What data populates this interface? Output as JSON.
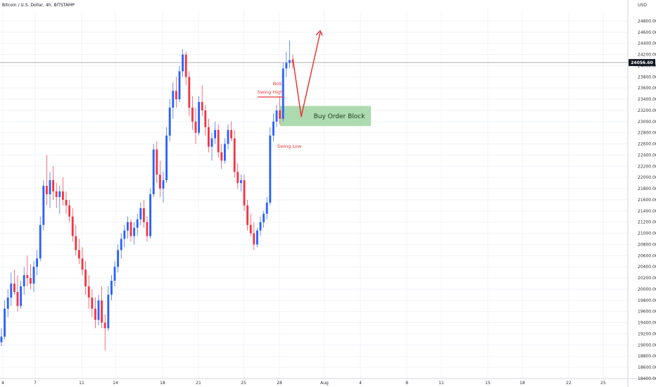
{
  "chart_data": {
    "type": "candlestick",
    "title": "Bitcoin / U.S. Dollar, 4h, BITSTAMP",
    "currency_label": "USD",
    "last_price": "24056.60",
    "last_price_value": 24056.6,
    "ylim": [
      18400,
      25000
    ],
    "y_ticks": [
      24800,
      24600,
      24400,
      24200,
      24000,
      23800,
      23600,
      23400,
      23200,
      23000,
      22800,
      22600,
      22400,
      22200,
      22000,
      21800,
      21600,
      21400,
      21200,
      21000,
      20800,
      20600,
      20400,
      20200,
      20000,
      19800,
      19600,
      19400,
      19200,
      19000,
      18800,
      18600,
      18400
    ],
    "y_tick_labels": [
      "24800.00",
      "24600.00",
      "24400.00",
      "24200.00",
      "24000.00",
      "23800.00",
      "23600.00",
      "23400.00",
      "23200.00",
      "23000.00",
      "22800.00",
      "22600.00",
      "22400.00",
      "22200.00",
      "22000.00",
      "21800.00",
      "21600.00",
      "21400.00",
      "21200.00",
      "21000.00",
      "20800.00",
      "20600.00",
      "20400.00",
      "20200.00",
      "20000.00",
      "19800.00",
      "19600.00",
      "19400.00",
      "19200.00",
      "19000.00",
      "18800.00",
      "18600.00",
      "18400.00"
    ],
    "x_tick_labels": [
      "4",
      "7",
      "11",
      "14",
      "18",
      "21",
      "25",
      "28",
      "Aug",
      "4",
      "8",
      "11",
      "15",
      "18",
      "22",
      "25"
    ],
    "colors": {
      "up": "#2962ff",
      "down": "#f23645",
      "annotation": "#e53935",
      "order_block_fill": "#a5d6a7",
      "grid": "#f0f3fa",
      "price_line": "#9598a1",
      "price_tag": "#131722"
    },
    "candles": [
      [
        19050,
        19300,
        18980,
        19150
      ],
      [
        19150,
        19800,
        19100,
        19650
      ],
      [
        19650,
        20000,
        19500,
        19850
      ],
      [
        19850,
        20300,
        19700,
        20100
      ],
      [
        20100,
        20350,
        19900,
        19950
      ],
      [
        19950,
        20250,
        19600,
        19700
      ],
      [
        19700,
        20150,
        19650,
        20050
      ],
      [
        20050,
        20400,
        19900,
        20250
      ],
      [
        20250,
        20600,
        20050,
        20200
      ],
      [
        20200,
        20450,
        20000,
        20100
      ],
      [
        20100,
        20500,
        19950,
        20400
      ],
      [
        20400,
        20700,
        20250,
        20550
      ],
      [
        20550,
        21300,
        20500,
        21150
      ],
      [
        21150,
        21950,
        21050,
        21850
      ],
      [
        21850,
        22400,
        21500,
        21700
      ],
      [
        21700,
        22100,
        21450,
        21950
      ],
      [
        21950,
        22200,
        21600,
        21750
      ],
      [
        21750,
        21900,
        21450,
        21650
      ],
      [
        21650,
        21850,
        21350,
        21750
      ],
      [
        21750,
        22000,
        21500,
        21600
      ],
      [
        21600,
        21750,
        21350,
        21500
      ],
      [
        21500,
        21600,
        21200,
        21300
      ],
      [
        21300,
        21450,
        20850,
        20950
      ],
      [
        20950,
        21150,
        20600,
        20700
      ],
      [
        20700,
        20900,
        20450,
        20550
      ],
      [
        20550,
        20750,
        20250,
        20350
      ],
      [
        20350,
        20500,
        19900,
        20050
      ],
      [
        20050,
        20250,
        19650,
        19850
      ],
      [
        19850,
        20000,
        19500,
        19650
      ],
      [
        19650,
        19850,
        19300,
        19450
      ],
      [
        19450,
        19900,
        19350,
        19800
      ],
      [
        19800,
        20050,
        19300,
        19400
      ],
      [
        19400,
        19550,
        18900,
        19300
      ],
      [
        19300,
        20050,
        19250,
        19900
      ],
      [
        19900,
        20250,
        19800,
        20150
      ],
      [
        20150,
        20500,
        20050,
        20400
      ],
      [
        20400,
        20800,
        20300,
        20700
      ],
      [
        20700,
        21000,
        20550,
        20900
      ],
      [
        20900,
        21150,
        20750,
        21050
      ],
      [
        21050,
        21300,
        20900,
        21200
      ],
      [
        21200,
        21250,
        20850,
        20950
      ],
      [
        20950,
        21200,
        20800,
        21100
      ],
      [
        21100,
        21350,
        20950,
        21250
      ],
      [
        21250,
        21550,
        21150,
        21450
      ],
      [
        21450,
        21600,
        21100,
        21200
      ],
      [
        21200,
        21300,
        20850,
        20950
      ],
      [
        20950,
        21800,
        20900,
        21700
      ],
      [
        21700,
        22600,
        21650,
        22500
      ],
      [
        22500,
        22650,
        21900,
        22050
      ],
      [
        22050,
        22300,
        21650,
        21800
      ],
      [
        21800,
        22100,
        21550,
        21950
      ],
      [
        21950,
        22900,
        21900,
        22750
      ],
      [
        22750,
        23400,
        22650,
        23250
      ],
      [
        23250,
        23700,
        23050,
        23550
      ],
      [
        23550,
        23800,
        23250,
        23400
      ],
      [
        23400,
        24000,
        23350,
        23900
      ],
      [
        23900,
        24300,
        23800,
        24200
      ],
      [
        24200,
        24250,
        23650,
        23800
      ],
      [
        23800,
        23900,
        23100,
        23250
      ],
      [
        23250,
        23450,
        22850,
        23000
      ],
      [
        23000,
        23250,
        22600,
        22800
      ],
      [
        22800,
        23450,
        22750,
        23350
      ],
      [
        23350,
        23650,
        23100,
        23200
      ],
      [
        23200,
        23300,
        22750,
        22900
      ],
      [
        22900,
        23050,
        22450,
        22550
      ],
      [
        22550,
        22800,
        22300,
        22700
      ],
      [
        22700,
        23000,
        22600,
        22850
      ],
      [
        22850,
        22950,
        22350,
        22450
      ],
      [
        22450,
        22600,
        22150,
        22300
      ],
      [
        22300,
        22700,
        22250,
        22600
      ],
      [
        22600,
        22950,
        22500,
        22850
      ],
      [
        22850,
        23000,
        22650,
        22700
      ],
      [
        22700,
        22850,
        22000,
        22100
      ],
      [
        22100,
        22250,
        21800,
        21900
      ],
      [
        21900,
        22050,
        21750,
        21950
      ],
      [
        21950,
        22050,
        21400,
        21500
      ],
      [
        21500,
        21600,
        21050,
        21150
      ],
      [
        21150,
        21350,
        20950,
        21000
      ],
      [
        21000,
        21200,
        20700,
        20800
      ],
      [
        20800,
        21100,
        20750,
        21050
      ],
      [
        21050,
        21300,
        20950,
        21200
      ],
      [
        21200,
        21400,
        21100,
        21350
      ],
      [
        21350,
        21650,
        21250,
        21550
      ],
      [
        21550,
        22900,
        21500,
        22750
      ],
      [
        22750,
        23150,
        22650,
        23000
      ],
      [
        23000,
        23300,
        22900,
        23200
      ],
      [
        23200,
        23450,
        22950,
        23050
      ],
      [
        23050,
        24050,
        23000,
        23950
      ],
      [
        23950,
        24250,
        23800,
        24050
      ],
      [
        24050,
        24450,
        23950,
        24100
      ],
      [
        24100,
        24200,
        23950,
        24056
      ]
    ]
  },
  "annotations": {
    "bos_label": "BoS",
    "swing_high_label": "Swing High",
    "swing_low_label": "Swing Low",
    "order_block_label": "Buy Order Block",
    "order_block_top": 23280,
    "order_block_bottom": 22920,
    "swing_high_price": 23440,
    "projection_path": [
      [
        24130,
        0
      ],
      [
        23090,
        1
      ],
      [
        24600,
        2
      ]
    ]
  }
}
